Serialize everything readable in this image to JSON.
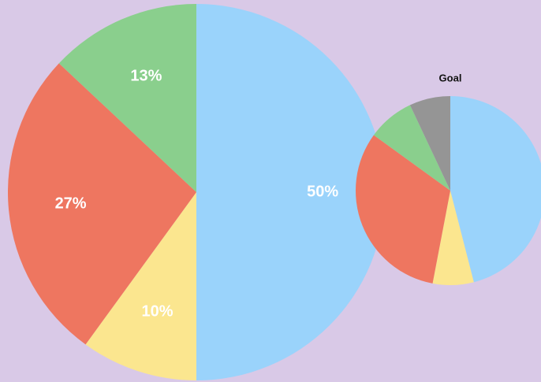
{
  "chart_data": [
    {
      "type": "pie",
      "values": [
        50,
        10,
        27,
        13
      ],
      "value_labels": [
        "50%",
        "10%",
        "27%",
        "13%"
      ],
      "colors": [
        "#9ad3fb",
        "#fbe68f",
        "#ee7660",
        "#8acf8d"
      ]
    },
    {
      "type": "pie",
      "title": "Goal",
      "values": [
        46,
        7,
        32,
        8,
        7
      ],
      "colors": [
        "#9ad3fb",
        "#fbe68f",
        "#ee7660",
        "#8acf8d",
        "#959595"
      ]
    }
  ]
}
